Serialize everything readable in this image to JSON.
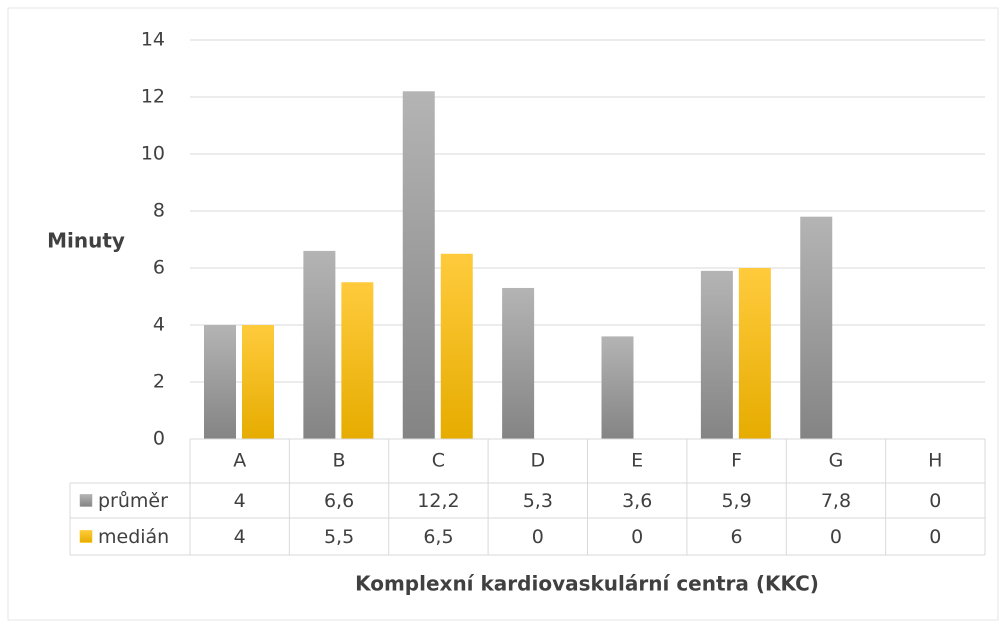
{
  "chart_data": {
    "type": "bar",
    "y_label": "Minuty",
    "x_label": "Komplexní kardiovaskulární centra (KKC)",
    "categories": [
      "A",
      "B",
      "C",
      "D",
      "E",
      "F",
      "G",
      "H"
    ],
    "series": [
      {
        "name": "průměr",
        "color": "#a0a0a0",
        "values": [
          4,
          6.6,
          12.2,
          5.3,
          3.6,
          5.9,
          7.8,
          0
        ],
        "value_labels": [
          "4",
          "6,6",
          "12,2",
          "5,3",
          "3,6",
          "5,9",
          "7,8",
          "0"
        ]
      },
      {
        "name": "medián",
        "color": "#ffc000",
        "values": [
          4,
          5.5,
          6.5,
          0,
          0,
          6,
          0,
          0
        ],
        "value_labels": [
          "4",
          "5,5",
          "6,5",
          "0",
          "0",
          "6",
          "0",
          "0"
        ]
      }
    ],
    "ylim": [
      0,
      14
    ],
    "yticks": [
      0,
      2,
      4,
      6,
      8,
      10,
      12,
      14
    ],
    "grid": true
  }
}
